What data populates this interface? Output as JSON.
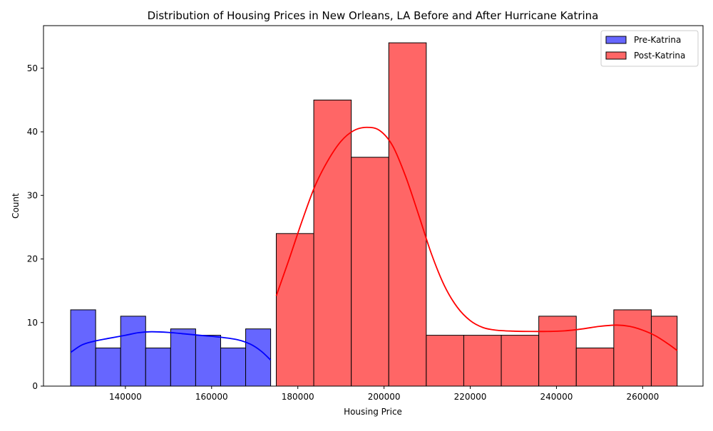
{
  "chart_data": {
    "type": "histogram",
    "title": "Distribution of Housing Prices in New Orleans, LA Before and After Hurricane Katrina",
    "xlabel": "Housing Price",
    "ylabel": "Count",
    "xlim": [
      121000,
      274000
    ],
    "ylim": [
      0,
      56.7
    ],
    "x_ticks": [
      140000,
      160000,
      180000,
      200000,
      220000,
      240000,
      260000
    ],
    "x_tick_labels": [
      "140000",
      "160000",
      "180000",
      "200000",
      "220000",
      "240000",
      "260000"
    ],
    "y_ticks": [
      0,
      10,
      20,
      30,
      40,
      50
    ],
    "y_tick_labels": [
      "0",
      "10",
      "20",
      "30",
      "40",
      "50"
    ],
    "grid": false,
    "legend_position": "top-right",
    "series": [
      {
        "name": "Pre-Katrina",
        "color": "#6666ff",
        "kde_color": "#0000ff",
        "bin_edges": [
          127300,
          133100,
          138900,
          144700,
          150500,
          156300,
          162100,
          167900,
          173700
        ],
        "counts": [
          12,
          6,
          11,
          6,
          9,
          8,
          6,
          9
        ],
        "kde": [
          [
            127300,
            5.3
          ],
          [
            130000,
            6.5
          ],
          [
            133000,
            7.1
          ],
          [
            136000,
            7.5
          ],
          [
            140000,
            8.0
          ],
          [
            143000,
            8.4
          ],
          [
            146000,
            8.55
          ],
          [
            150000,
            8.45
          ],
          [
            154000,
            8.2
          ],
          [
            158000,
            7.95
          ],
          [
            162000,
            7.7
          ],
          [
            166000,
            7.3
          ],
          [
            169000,
            6.6
          ],
          [
            171500,
            5.5
          ],
          [
            173700,
            4.1
          ]
        ]
      },
      {
        "name": "Post-Katrina",
        "color": "#ff6666",
        "kde_color": "#ff0000",
        "bin_edges": [
          175000,
          183700,
          192400,
          201100,
          209800,
          218500,
          227200,
          235900,
          244600,
          253300,
          262000,
          268000
        ],
        "counts": [
          24,
          45,
          36,
          54,
          8,
          8,
          8,
          11,
          6,
          12,
          11
        ],
        "kde": [
          [
            175000,
            14.2
          ],
          [
            178000,
            20.0
          ],
          [
            181000,
            26.0
          ],
          [
            184000,
            31.5
          ],
          [
            187000,
            35.5
          ],
          [
            190000,
            38.5
          ],
          [
            193000,
            40.2
          ],
          [
            196000,
            40.7
          ],
          [
            199000,
            40.2
          ],
          [
            202000,
            37.8
          ],
          [
            205000,
            33.0
          ],
          [
            208000,
            27.0
          ],
          [
            211000,
            20.8
          ],
          [
            214000,
            15.8
          ],
          [
            217000,
            12.4
          ],
          [
            220000,
            10.3
          ],
          [
            223000,
            9.2
          ],
          [
            226000,
            8.8
          ],
          [
            230000,
            8.65
          ],
          [
            234000,
            8.6
          ],
          [
            238000,
            8.6
          ],
          [
            242000,
            8.7
          ],
          [
            246000,
            9.0
          ],
          [
            250000,
            9.4
          ],
          [
            254000,
            9.6
          ],
          [
            257000,
            9.4
          ],
          [
            260000,
            8.8
          ],
          [
            263000,
            7.9
          ],
          [
            266000,
            6.6
          ],
          [
            268000,
            5.6
          ]
        ]
      }
    ]
  }
}
